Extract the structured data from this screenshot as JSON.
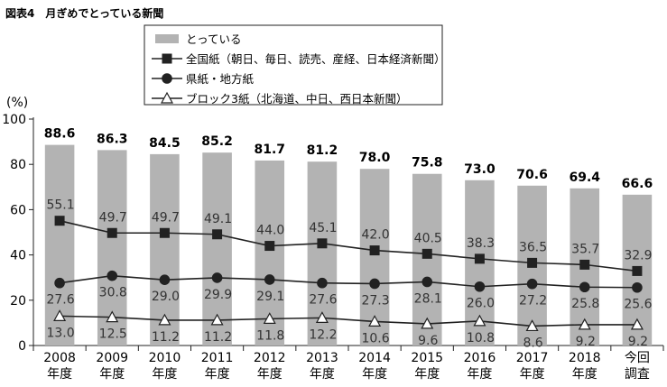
{
  "chart_data": {
    "type": "bar",
    "title": "図表4　月ぎめでとっている新聞",
    "ylabel": "(%)",
    "ylim": [
      0,
      100
    ],
    "yticks": [
      "0",
      "20",
      "40",
      "60",
      "80",
      "100"
    ],
    "grid": false,
    "legend_position": "top-center",
    "categories": [
      {
        "l1": "2008",
        "l2": "年度"
      },
      {
        "l1": "2009",
        "l2": "年度"
      },
      {
        "l1": "2010",
        "l2": "年度"
      },
      {
        "l1": "2011",
        "l2": "年度"
      },
      {
        "l1": "2012",
        "l2": "年度"
      },
      {
        "l1": "2013",
        "l2": "年度"
      },
      {
        "l1": "2014",
        "l2": "年度"
      },
      {
        "l1": "2015",
        "l2": "年度"
      },
      {
        "l1": "2016",
        "l2": "年度"
      },
      {
        "l1": "2017",
        "l2": "年度"
      },
      {
        "l1": "2018",
        "l2": "年度"
      },
      {
        "l1": "今回",
        "l2": "調査"
      }
    ],
    "series": [
      {
        "name": "とっている",
        "kind": "bar",
        "marker": "none",
        "color": "#b3b3b3",
        "values": [
          88.6,
          86.3,
          84.5,
          85.2,
          81.7,
          81.2,
          78.0,
          75.8,
          73.0,
          70.6,
          69.4,
          66.6
        ],
        "labels": [
          "88.6",
          "86.3",
          "84.5",
          "85.2",
          "81.7",
          "81.2",
          "78.0",
          "75.8",
          "73.0",
          "70.6",
          "69.4",
          "66.6"
        ]
      },
      {
        "name": "全国紙（朝日、毎日、読売、産経、日本経済新聞）",
        "kind": "line",
        "marker": "square",
        "color": "#222222",
        "values": [
          55.1,
          49.7,
          49.7,
          49.1,
          44.0,
          45.1,
          42.0,
          40.5,
          38.3,
          36.5,
          35.7,
          32.9
        ],
        "labels": [
          "55.1",
          "49.7",
          "49.7",
          "49.1",
          "44.0",
          "45.1",
          "42.0",
          "40.5",
          "38.3",
          "36.5",
          "35.7",
          "32.9"
        ]
      },
      {
        "name": "県紙・地方紙",
        "kind": "line",
        "marker": "circle",
        "color": "#222222",
        "values": [
          27.6,
          30.8,
          29.0,
          29.9,
          29.1,
          27.6,
          27.3,
          28.1,
          26.0,
          27.2,
          25.8,
          25.6
        ],
        "labels": [
          "27.6",
          "30.8",
          "29.0",
          "29.9",
          "29.1",
          "27.6",
          "27.3",
          "28.1",
          "26.0",
          "27.2",
          "25.8",
          "25.6"
        ]
      },
      {
        "name": "ブロック3紙（北海道、中日、西日本新聞）",
        "kind": "line",
        "marker": "triangle",
        "color": "#222222",
        "values": [
          13.0,
          12.5,
          11.2,
          11.2,
          11.8,
          12.2,
          10.6,
          9.6,
          10.8,
          8.6,
          9.2,
          9.2
        ],
        "labels": [
          "13.0",
          "12.5",
          "11.2",
          "11.2",
          "11.8",
          "12.2",
          "10.6",
          "9.6",
          "10.8",
          "8.6",
          "9.2",
          "9.2"
        ]
      }
    ]
  }
}
